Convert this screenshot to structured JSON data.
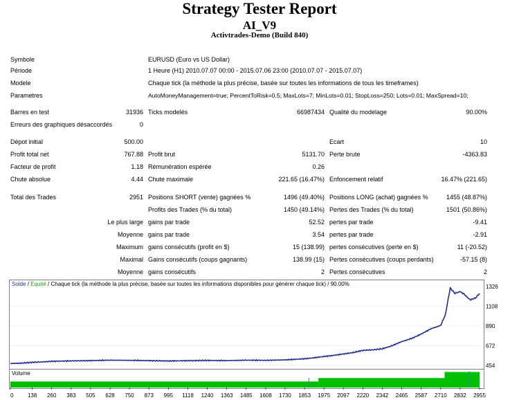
{
  "report": {
    "title": "Strategy Tester Report",
    "subtitle": "AI_V9",
    "build": "Activtrades-Demo (Build 840)"
  },
  "info": [
    {
      "label": "Symbole",
      "value": "EURUSD (Euro vs US Dollar)"
    },
    {
      "label": "Période",
      "value": "1 Heure (H1) 2010.07.07 00:00 - 2015.07.06 23:00 (2010.07.07 - 2015.07.07)"
    },
    {
      "label": "Modele",
      "value": "Chaque tick (la méthode la plus précise, basée sur toutes les informations de tous les timeframes)"
    },
    {
      "label": "Parametres",
      "value": "AutoMoneyManagement=true; PercentToRisk=0.5; MaxLots=7; MinLots=0.01; StopLoss=250; Lots=0.01; MaxSpread=10;"
    }
  ],
  "stats": {
    "bars_label": "Barres en test",
    "bars": "31936",
    "ticks_label": "Ticks modelés",
    "ticks": "66987434",
    "quality_label": "Qualité du modelage",
    "quality": "90.00%",
    "errors_label": "Erreurs des graphiques désaccordés",
    "errors": "0",
    "deposit_label": "Dépot initial",
    "deposit": "500.00",
    "spread_label": "Ecart",
    "spread": "10",
    "net_label": "Profit total net",
    "net": "767.88",
    "gross_profit_label": "Profit brut",
    "gross_profit": "5131.70",
    "gross_loss_label": "Perte brute",
    "gross_loss": "-4363.83",
    "pf_label": "Facteur de profit",
    "pf": "1.18",
    "expected_label": "Rémunération espérée",
    "expected": "0.26",
    "abs_dd_label": "Chute absolue",
    "abs_dd": "4.44",
    "max_dd_label": "Chute maximale",
    "max_dd": "221.65 (16.47%)",
    "rel_dd_label": "Enfoncement relatif",
    "rel_dd": "16.47% (221.65)",
    "trades_label": "Total des Trades",
    "trades": "2951",
    "short_label": "Positions SHORT (vente) gagnées %",
    "short": "1496 (49.40%)",
    "long_label": "Positions LONG (achat) gagnées %",
    "long": "1455 (48.87%)",
    "pt_label": "Profits des Trades (% du total)",
    "pt": "1450 (49.14%)",
    "lt_label": "Pertes des Trades (% du total)",
    "lt": "1501 (50.86%)",
    "largest_label": "Le plus large",
    "largest_win_label": "gains par trade",
    "largest_win": "52.52",
    "largest_loss_label": "pertes par trade",
    "largest_loss": "-9.41",
    "avg_label": "Moyenne",
    "avg_win_label": "gains par trade",
    "avg_win": "3.54",
    "avg_loss_label": "pertes par trade",
    "avg_loss": "-2.91",
    "max_label": "Maximum",
    "max_cw_label": "gains consécutifs (profit en $)",
    "max_cw": "15 (138.99)",
    "max_cl_label": "pertes consécutives (perte en $)",
    "max_cl": "11 (-20.52)",
    "maximal_label": "Maximal",
    "maximal_cw_label": "Gains consécutifs (coups gagnants)",
    "maximal_cw": "138.99 (15)",
    "maximal_cl_label": "Pertes consécutives (coups perdants)",
    "maximal_cl": "-57.15 (8)",
    "avg2_label": "Moyenne",
    "avg_cw_label": "gains consécutifs",
    "avg_cw": "2",
    "avg_cl_label": "Pertes consécutives",
    "avg_cl": "2"
  },
  "chart_data": {
    "type": "line",
    "legend": {
      "solde": "Solde",
      "sep": " / ",
      "equity": "Equité",
      "rest": " / Chaque tick (la méthode la plus précise, basée sur toutes les informations disponibles pour générer chaque tick) / 90.00%"
    },
    "series": [
      {
        "name": "Solde",
        "color": "#1f2b8f",
        "x": [
          0,
          60,
          138,
          200,
          260,
          383,
          505,
          628,
          750,
          873,
          995,
          1118,
          1240,
          1363,
          1485,
          1608,
          1730,
          1853,
          1900,
          1975,
          2040,
          2097,
          2160,
          2220,
          2280,
          2342,
          2400,
          2465,
          2530,
          2587,
          2650,
          2710,
          2740,
          2770,
          2800,
          2832,
          2860,
          2880,
          2900,
          2930,
          2955
        ],
        "y": [
          475,
          478,
          488,
          492,
          499,
          504,
          507,
          512,
          510,
          507,
          503,
          506,
          509,
          507,
          512,
          510,
          515,
          527,
          536,
          552,
          566,
          580,
          596,
          620,
          626,
          637,
          669,
          717,
          754,
          800,
          860,
          895,
          1015,
          1310,
          1250,
          1270,
          1240,
          1200,
          1180,
          1200,
          1250
        ]
      }
    ],
    "y_ticks": [
      "1326",
      "1108",
      "890",
      "672",
      "454"
    ],
    "y_range": [
      454,
      1326
    ],
    "x_ticks": [
      "0",
      "138",
      "260",
      "383",
      "505",
      "628",
      "750",
      "873",
      "995",
      "1118",
      "1240",
      "1363",
      "1485",
      "1608",
      "1730",
      "1853",
      "1975",
      "2097",
      "2220",
      "2342",
      "2465",
      "2587",
      "2710",
      "2832",
      "2955"
    ],
    "x_range": [
      0,
      2955
    ],
    "volume": {
      "label": "Volume",
      "color": "#00c000",
      "steps": [
        {
          "from": 0,
          "to": 1940,
          "level": 0.35
        },
        {
          "from": 1940,
          "to": 2735,
          "level": 0.55
        },
        {
          "from": 2735,
          "to": 2955,
          "level": 0.9
        }
      ]
    }
  }
}
